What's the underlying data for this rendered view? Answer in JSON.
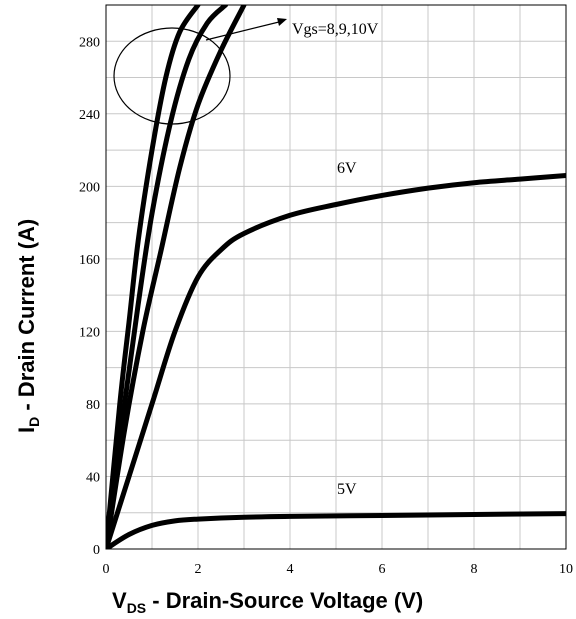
{
  "chart_data": {
    "type": "line",
    "xlabel": {
      "main": "V",
      "sub": "DS",
      "rest": " - Drain-Source Voltage (V)"
    },
    "ylabel": {
      "main": "I",
      "sub": "D",
      "rest": " - Drain Current (A)"
    },
    "xlim": [
      0,
      10
    ],
    "ylim": [
      0,
      300
    ],
    "x_ticks": [
      0,
      2,
      4,
      6,
      8,
      10
    ],
    "y_ticks": [
      0,
      40,
      80,
      120,
      160,
      200,
      240,
      280
    ],
    "grid": true,
    "annotation": "Vgs=8,9,10V",
    "series": [
      {
        "name": "5V",
        "points": [
          [
            0,
            0
          ],
          [
            0.5,
            8
          ],
          [
            1,
            13
          ],
          [
            1.5,
            15.5
          ],
          [
            2,
            16.5
          ],
          [
            3,
            17.5
          ],
          [
            4,
            18
          ],
          [
            6,
            18.5
          ],
          [
            8,
            19
          ],
          [
            10,
            19.5
          ]
        ]
      },
      {
        "name": "6V",
        "points": [
          [
            0,
            0
          ],
          [
            0.5,
            40
          ],
          [
            1,
            80
          ],
          [
            1.5,
            120
          ],
          [
            2,
            150
          ],
          [
            2.5,
            165
          ],
          [
            3,
            174
          ],
          [
            4,
            184
          ],
          [
            5,
            190
          ],
          [
            6,
            195
          ],
          [
            7,
            199
          ],
          [
            8,
            202
          ],
          [
            9,
            204
          ],
          [
            10,
            206
          ]
        ]
      },
      {
        "points": [
          [
            0,
            0
          ],
          [
            0.3,
            80
          ],
          [
            0.5,
            125
          ],
          [
            0.7,
            170
          ],
          [
            1,
            220
          ],
          [
            1.3,
            260
          ],
          [
            1.6,
            285
          ],
          [
            2,
            300
          ]
        ]
      },
      {
        "points": [
          [
            0,
            0
          ],
          [
            0.35,
            70
          ],
          [
            0.7,
            135
          ],
          [
            1,
            185
          ],
          [
            1.4,
            235
          ],
          [
            1.8,
            270
          ],
          [
            2.2,
            290
          ],
          [
            2.6,
            300
          ]
        ]
      },
      {
        "points": [
          [
            0,
            0
          ],
          [
            0.4,
            65
          ],
          [
            0.8,
            120
          ],
          [
            1.2,
            165
          ],
          [
            1.6,
            210
          ],
          [
            2,
            245
          ],
          [
            2.5,
            275
          ],
          [
            3,
            300
          ]
        ]
      }
    ]
  }
}
